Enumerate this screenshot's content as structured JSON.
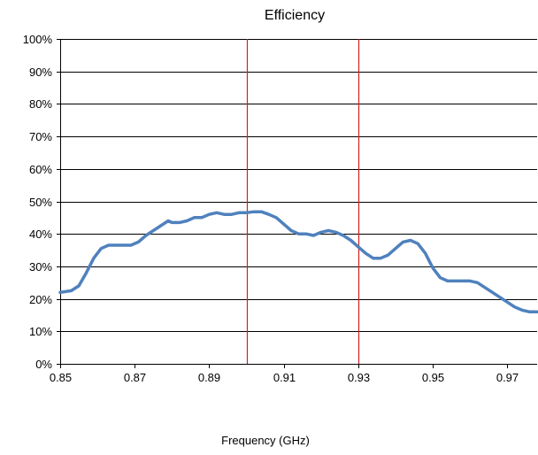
{
  "chart_data": {
    "type": "line",
    "title": "Efficiency",
    "xlabel": "Frequency (GHz)",
    "ylabel": "",
    "xlim": [
      0.85,
      0.978
    ],
    "ylim": [
      0,
      100
    ],
    "x_ticks": [
      0.85,
      0.87,
      0.89,
      0.91,
      0.93,
      0.95,
      0.97
    ],
    "x_tick_labels": [
      "0.85",
      "0.87",
      "0.89",
      "0.91",
      "0.93",
      "0.95",
      "0.97"
    ],
    "y_ticks": [
      0,
      10,
      20,
      30,
      40,
      50,
      60,
      70,
      80,
      90,
      100
    ],
    "y_tick_labels": [
      "0%",
      "10%",
      "20%",
      "30%",
      "40%",
      "50%",
      "60%",
      "70%",
      "80%",
      "90%",
      "100%"
    ],
    "grid": "horizontal",
    "legend": "none",
    "reference_lines_x": [
      0.9,
      0.93
    ],
    "reference_line_color": "#cc2222",
    "series": [
      {
        "color": "#4f81bd",
        "x": [
          0.85,
          0.853,
          0.855,
          0.857,
          0.859,
          0.861,
          0.863,
          0.865,
          0.867,
          0.869,
          0.871,
          0.873,
          0.875,
          0.877,
          0.879,
          0.88,
          0.882,
          0.884,
          0.886,
          0.888,
          0.89,
          0.892,
          0.894,
          0.896,
          0.898,
          0.9,
          0.902,
          0.904,
          0.906,
          0.908,
          0.91,
          0.912,
          0.914,
          0.916,
          0.918,
          0.92,
          0.922,
          0.924,
          0.926,
          0.928,
          0.93,
          0.932,
          0.934,
          0.936,
          0.938,
          0.94,
          0.942,
          0.944,
          0.946,
          0.948,
          0.95,
          0.952,
          0.954,
          0.956,
          0.958,
          0.96,
          0.962,
          0.964,
          0.966,
          0.968,
          0.97,
          0.972,
          0.974,
          0.976,
          0.978
        ],
        "y": [
          22,
          22.5,
          24,
          28,
          32.5,
          35.5,
          36.5,
          36.5,
          36.5,
          36.5,
          37.5,
          39.5,
          41,
          42.5,
          44,
          43.5,
          43.5,
          44,
          45,
          45,
          46,
          46.5,
          46,
          46,
          46.5,
          46.5,
          46.8,
          46.8,
          46,
          45,
          43,
          41,
          40,
          40,
          39.5,
          40.5,
          41,
          40.5,
          39.5,
          38,
          36,
          34,
          32.5,
          32.5,
          33.5,
          35.5,
          37.5,
          38,
          37,
          34,
          29.5,
          26.5,
          25.5,
          25.5,
          25.5,
          25.5,
          25,
          23.5,
          22,
          20.5,
          19,
          17.5,
          16.5,
          16,
          16
        ]
      }
    ]
  }
}
